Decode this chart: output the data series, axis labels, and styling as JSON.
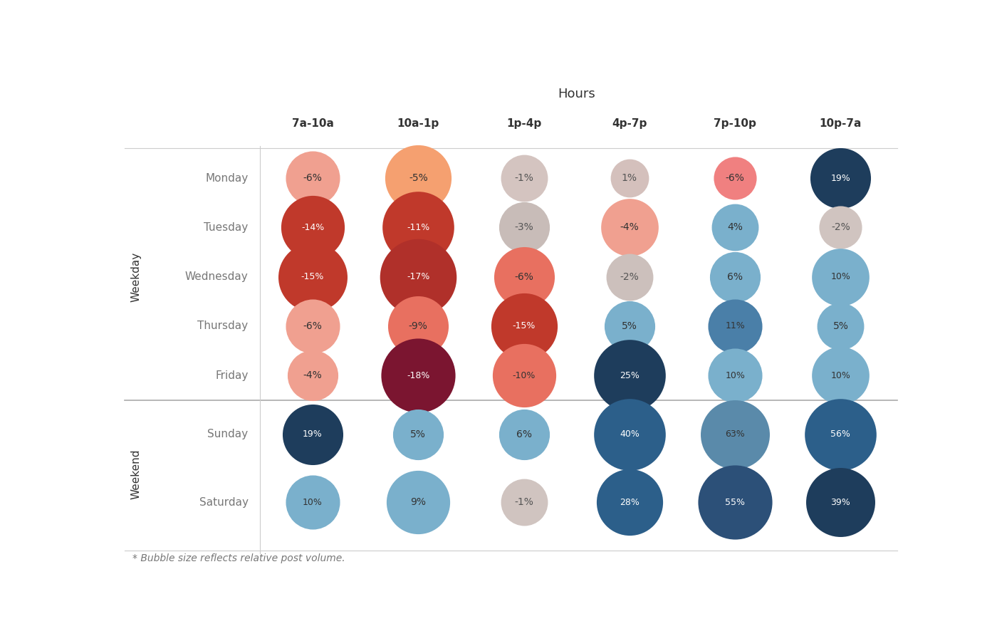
{
  "title": "Hours",
  "hours": [
    "7a-10a",
    "10a-1p",
    "1p-4p",
    "4p-7p",
    "7p-10p",
    "10p-7a"
  ],
  "weekdays": [
    "Monday",
    "Tuesday",
    "Wednesday",
    "Thursday",
    "Friday"
  ],
  "weekend": [
    "Sunday",
    "Saturday"
  ],
  "row_label_weekday": "Weekday",
  "row_label_weekend": "Weekend",
  "footnote": "* Bubble size reflects relative post volume.",
  "values": {
    "Monday": [
      -6,
      -5,
      -1,
      1,
      -6,
      19
    ],
    "Tuesday": [
      -14,
      -11,
      -3,
      -4,
      4,
      -2
    ],
    "Wednesday": [
      -15,
      -17,
      -6,
      -2,
      6,
      10
    ],
    "Thursday": [
      -6,
      -9,
      -15,
      5,
      11,
      5
    ],
    "Friday": [
      -4,
      -18,
      -10,
      25,
      10,
      10
    ],
    "Sunday": [
      19,
      5,
      6,
      40,
      63,
      56
    ],
    "Saturday": [
      10,
      9,
      -1,
      28,
      55,
      39
    ]
  },
  "bubble_sizes": {
    "Monday": [
      800,
      1200,
      600,
      400,
      500,
      1000
    ],
    "Tuesday": [
      1100,
      1400,
      700,
      900,
      600,
      500
    ],
    "Wednesday": [
      1300,
      1600,
      1000,
      600,
      700,
      900
    ],
    "Thursday": [
      800,
      1000,
      1200,
      700,
      800,
      600
    ],
    "Friday": [
      700,
      1500,
      1100,
      1400,
      800,
      900
    ],
    "Sunday": [
      1000,
      700,
      700,
      1400,
      1300,
      1400
    ],
    "Saturday": [
      800,
      1100,
      600,
      1200,
      1500,
      1300
    ]
  },
  "color_map": {
    "Monday": [
      "#f0a090",
      "#f5a070",
      "#d4c4c0",
      "#d4c0bc",
      "#f08080",
      "#1e3d5c"
    ],
    "Tuesday": [
      "#c0392b",
      "#c0392b",
      "#c8bcb8",
      "#f0a090",
      "#7ab0cc",
      "#d0c4c0"
    ],
    "Wednesday": [
      "#c0392b",
      "#b0302a",
      "#e87060",
      "#ccc0bc",
      "#7ab0cc",
      "#7ab0cc"
    ],
    "Thursday": [
      "#f0a090",
      "#e87060",
      "#c0392b",
      "#7ab0cc",
      "#4a7fa8",
      "#7ab0cc"
    ],
    "Friday": [
      "#f0a090",
      "#7b1530",
      "#e87060",
      "#1e3d5c",
      "#7ab0cc",
      "#7ab0cc"
    ],
    "Sunday": [
      "#1e3d5c",
      "#7ab0cc",
      "#7ab0cc",
      "#2c5f8a",
      "#5a8aaa",
      "#2c5f8a"
    ],
    "Saturday": [
      "#7ab0cc",
      "#7ab0cc",
      "#d0c4c0",
      "#2c5f8a",
      "#2c5078",
      "#1e3d5c"
    ]
  },
  "text_color_map": {
    "Monday": [
      "#333333",
      "#333333",
      "#555555",
      "#555555",
      "#333333",
      "#ffffff"
    ],
    "Tuesday": [
      "#ffffff",
      "#ffffff",
      "#555555",
      "#333333",
      "#333333",
      "#555555"
    ],
    "Wednesday": [
      "#ffffff",
      "#ffffff",
      "#333333",
      "#555555",
      "#333333",
      "#333333"
    ],
    "Thursday": [
      "#333333",
      "#333333",
      "#ffffff",
      "#333333",
      "#333333",
      "#333333"
    ],
    "Friday": [
      "#333333",
      "#ffffff",
      "#333333",
      "#ffffff",
      "#333333",
      "#333333"
    ],
    "Sunday": [
      "#ffffff",
      "#333333",
      "#333333",
      "#ffffff",
      "#333333",
      "#ffffff"
    ],
    "Saturday": [
      "#333333",
      "#333333",
      "#555555",
      "#ffffff",
      "#ffffff",
      "#ffffff"
    ]
  },
  "background_color": "#ffffff",
  "grid_line_color": "#cccccc",
  "separator_color": "#aaaaaa",
  "title_fontsize": 13,
  "label_fontsize": 11,
  "tick_fontsize": 11,
  "note_fontsize": 10,
  "text_color_dark": "#333333",
  "text_color_label": "#777777"
}
